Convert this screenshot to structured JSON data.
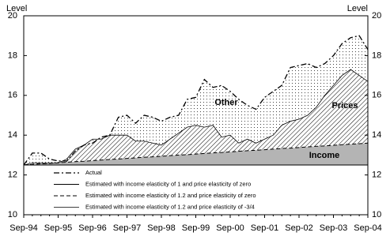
{
  "chart_data": {
    "type": "line",
    "y_label": "Level",
    "y2_label": "Level",
    "x": [
      "Sep-94",
      null,
      null,
      null,
      "Sep-95",
      null,
      null,
      null,
      "Sep-96",
      null,
      null,
      null,
      "Sep-97",
      null,
      null,
      null,
      "Sep-98",
      null,
      null,
      null,
      "Sep-99",
      null,
      null,
      null,
      "Sep-00",
      null,
      null,
      null,
      "Sep-01",
      null,
      null,
      null,
      "Sep-02",
      null,
      null,
      null,
      "Sep-03",
      null,
      null,
      null,
      "Sep-04"
    ],
    "series": [
      {
        "name": "Actual",
        "color": "#000000",
        "dash": "7 3 2 3",
        "width": 1.3,
        "values": [
          12.5,
          13.1,
          13.1,
          12.8,
          12.7,
          12.7,
          13.2,
          13.5,
          13.6,
          13.9,
          14.0,
          14.9,
          15.0,
          14.6,
          15.0,
          14.9,
          14.7,
          14.9,
          15.0,
          15.8,
          15.9,
          16.8,
          16.4,
          16.5,
          16.2,
          15.8,
          15.5,
          15.3,
          15.9,
          16.2,
          16.5,
          17.4,
          17.5,
          17.6,
          17.4,
          17.6,
          18.0,
          18.6,
          18.9,
          19.0,
          18.3
        ]
      },
      {
        "name": "Estimated with income elasticity of 1 and price elasticity of zero",
        "color": "#000000",
        "dash": "none",
        "width": 1,
        "values": [
          12.5,
          12.5,
          12.5,
          12.5,
          12.5,
          12.5,
          12.5,
          12.5,
          12.5,
          12.5,
          12.5,
          12.5,
          12.5,
          12.5,
          12.5,
          12.5,
          12.5,
          12.5,
          12.5,
          12.5,
          12.5,
          12.5,
          12.5,
          12.5,
          12.5,
          12.5,
          12.5,
          12.5,
          12.5,
          12.5,
          12.5,
          12.5,
          12.5,
          12.5,
          12.5,
          12.5,
          12.5,
          12.5,
          12.5,
          12.5,
          12.5
        ]
      },
      {
        "name": "Estimated with income elasticity of 1.2 and price elasticity of zero",
        "color": "#000000",
        "dash": "5 3",
        "width": 1,
        "values": [
          12.5,
          12.53,
          12.56,
          12.58,
          12.61,
          12.64,
          12.67,
          12.69,
          12.72,
          12.75,
          12.78,
          12.8,
          12.83,
          12.86,
          12.89,
          12.91,
          12.94,
          12.97,
          13.0,
          13.02,
          13.05,
          13.08,
          13.11,
          13.13,
          13.16,
          13.19,
          13.22,
          13.24,
          13.27,
          13.3,
          13.33,
          13.35,
          13.38,
          13.41,
          13.44,
          13.46,
          13.49,
          13.52,
          13.55,
          13.57,
          13.6
        ]
      },
      {
        "name": "Estimated with income elasticity of 1.2 and price elasticity of -3/4",
        "color": "#000000",
        "dash": "none",
        "width": 0.8,
        "values": [
          12.5,
          12.6,
          12.6,
          12.6,
          12.6,
          12.8,
          13.3,
          13.5,
          13.8,
          13.8,
          14.0,
          14.0,
          14.0,
          13.7,
          13.7,
          13.6,
          13.5,
          13.8,
          14.1,
          14.4,
          14.5,
          14.4,
          14.5,
          13.9,
          14.0,
          13.6,
          13.8,
          13.6,
          13.8,
          14.0,
          14.5,
          14.7,
          14.8,
          15.0,
          15.4,
          16.0,
          16.5,
          17.0,
          17.3,
          17.0,
          16.7
        ]
      }
    ],
    "annotations": [
      "Income",
      "Prices",
      "Other"
    ],
    "ylim": [
      10,
      20
    ],
    "yticks": [
      10,
      12,
      14,
      16,
      18,
      20
    ],
    "y2lim": [
      10,
      20
    ],
    "y2ticks": [
      10,
      12,
      14,
      16,
      18,
      20
    ]
  }
}
